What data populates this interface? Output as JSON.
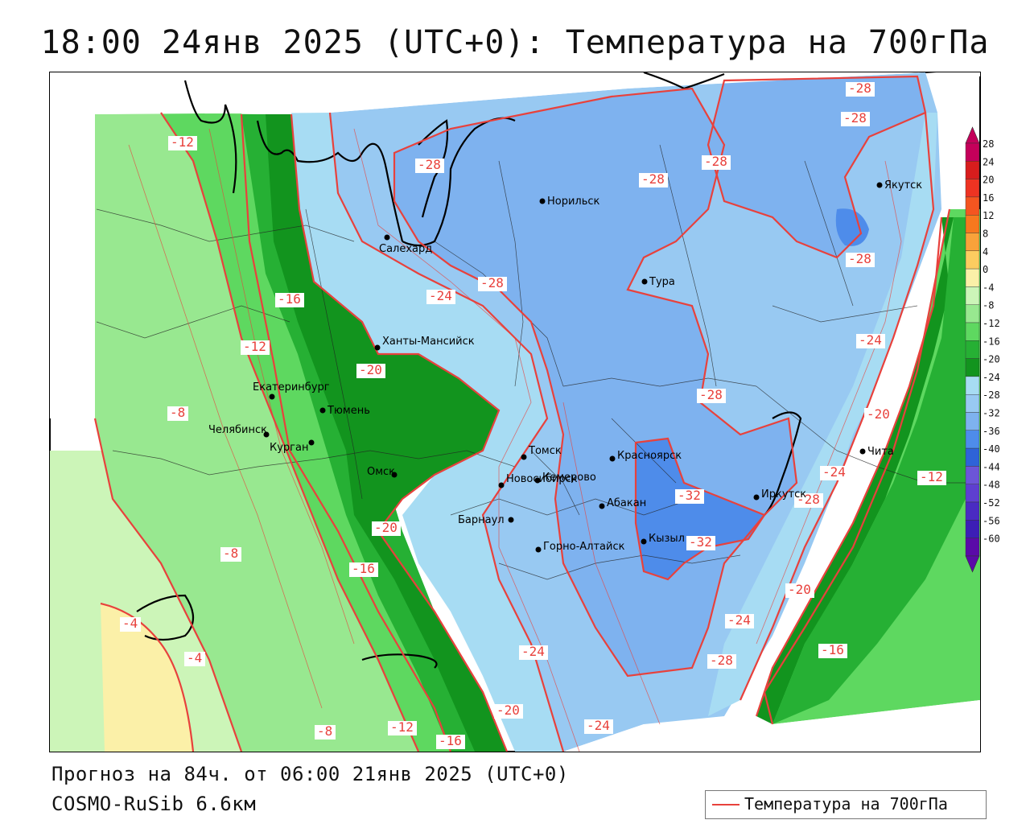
{
  "title": "18:00 24янв 2025 (UTC+0): Температура на 700гПа",
  "forecast_text": "Прогноз на 84ч. от 06:00 21янв 2025 (UTC+0)",
  "model_text": "COSMO-RuSib 6.6км",
  "legend_label": "Температура на 700гПа",
  "colors": {
    "contour": "#e8413c",
    "contour_label": "#e8413c",
    "city_dot": "#000000"
  },
  "color_scale": {
    "labels": [
      "28",
      "24",
      "20",
      "16",
      "12",
      "8",
      "4",
      "0",
      "-4",
      "-8",
      "-12",
      "-16",
      "-20",
      "-24",
      "-28",
      "-32",
      "-36",
      "-40",
      "-44",
      "-48",
      "-52",
      "-56",
      "-60"
    ],
    "colors": [
      "#c4005a",
      "#d81d1d",
      "#ee3322",
      "#f45520",
      "#f7781e",
      "#f9a23a",
      "#fccc60",
      "#fbf0a8",
      "#ccf5b8",
      "#98e890",
      "#5ed860",
      "#26b034",
      "#12941e",
      "#a7dcf3",
      "#98c9f2",
      "#7eb2ef",
      "#4e8cea",
      "#2e63d8",
      "#6c55d8",
      "#5e3fd0",
      "#4a2bc2",
      "#3c1eb6",
      "#5a0aa8"
    ]
  },
  "cities": [
    {
      "name": "Норильск"
    },
    {
      "name": "Салехард"
    },
    {
      "name": "Тура"
    },
    {
      "name": "Якутск"
    },
    {
      "name": "Ханты-Мансийск"
    },
    {
      "name": "Екатеринбург"
    },
    {
      "name": "Тюмень"
    },
    {
      "name": "Челябинск"
    },
    {
      "name": "Курган"
    },
    {
      "name": "Омск"
    },
    {
      "name": "Новосибирск"
    },
    {
      "name": "Томск"
    },
    {
      "name": "Кемерово"
    },
    {
      "name": "Красноярск"
    },
    {
      "name": "Абакан"
    },
    {
      "name": "Барнаул"
    },
    {
      "name": "Горно-Алтайск"
    },
    {
      "name": "Кызыл"
    },
    {
      "name": "Иркутск"
    },
    {
      "name": "Чита"
    }
  ],
  "contour_labels": [
    "-12",
    "-28",
    "-28",
    "-28",
    "-28",
    "-28",
    "-28",
    "-28",
    "-24",
    "-16",
    "-12",
    "-20",
    "-8",
    "-28",
    "-24",
    "-20",
    "-24",
    "-12",
    "-32",
    "-28",
    "-32",
    "-20",
    "-16",
    "-8",
    "-4",
    "-4",
    "-24",
    "-20",
    "-16",
    "-24",
    "-28",
    "-20",
    "-24",
    "-8",
    "-12",
    "-16"
  ]
}
